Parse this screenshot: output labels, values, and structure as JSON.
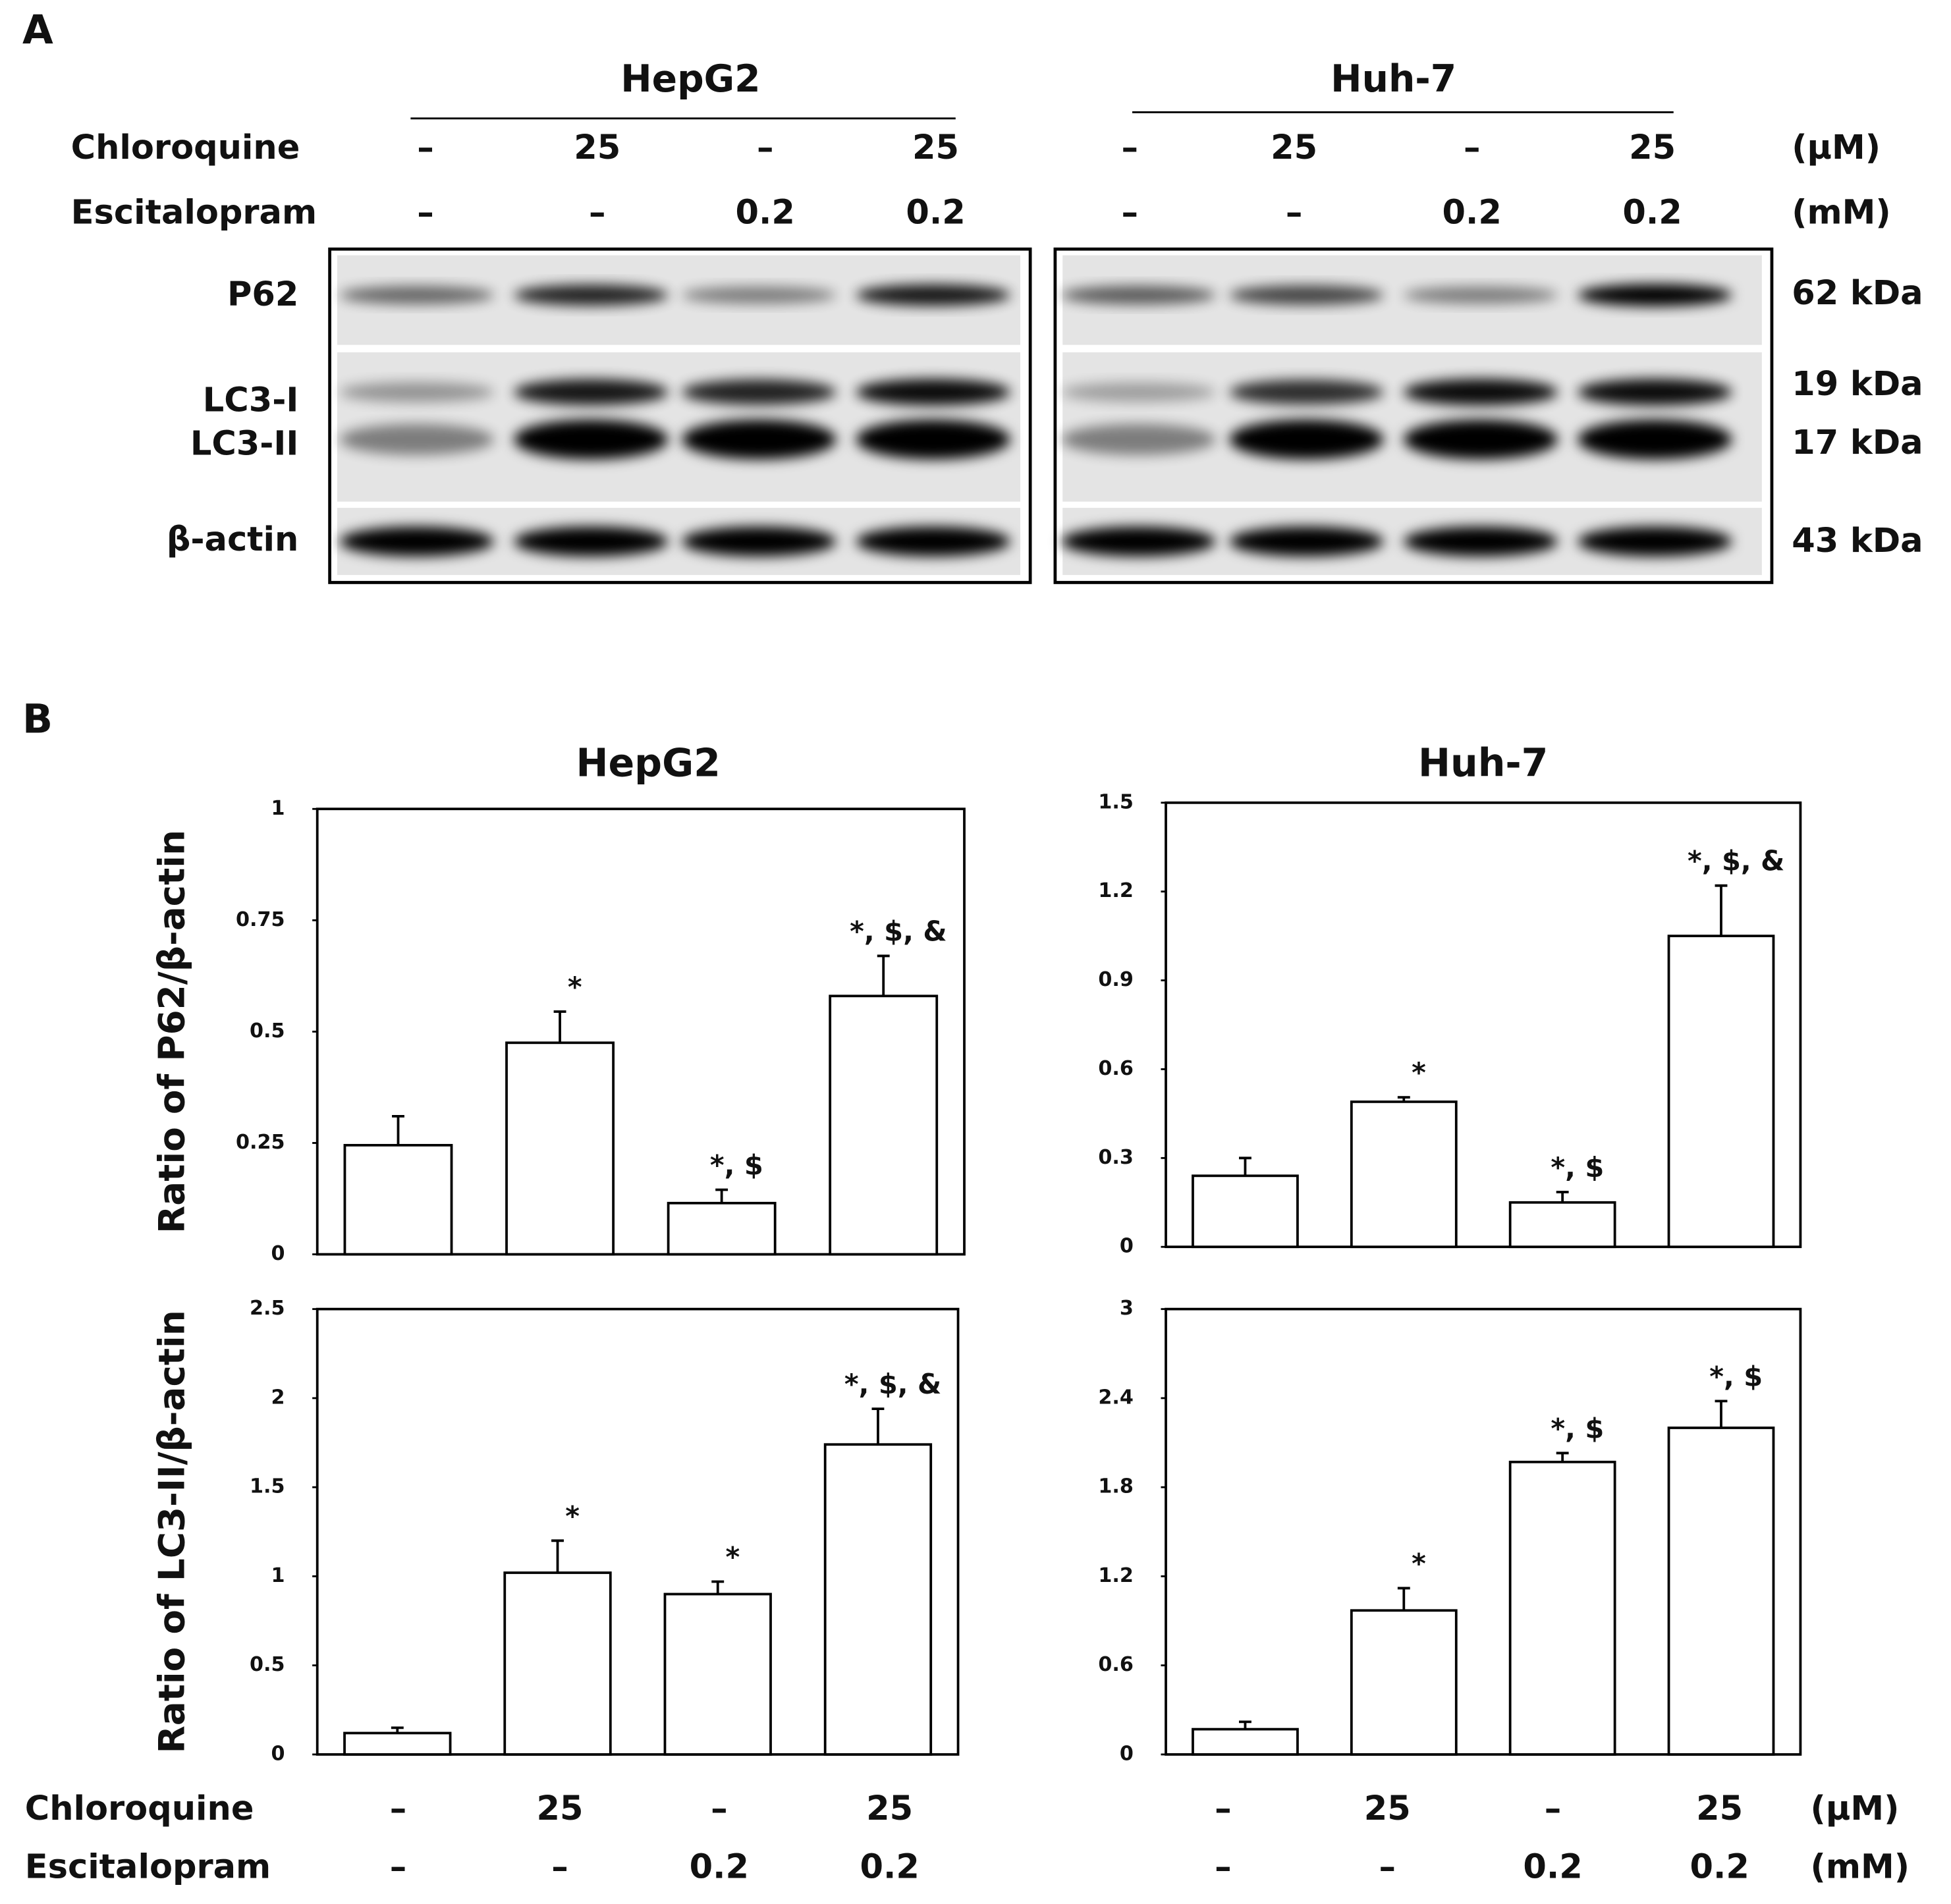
{
  "panel_a": {
    "label": "A",
    "groups": [
      "HepG2",
      "Huh-7"
    ],
    "treatments": [
      {
        "name": "Chloroquine",
        "unit": "(µM)",
        "lanes": [
          [
            "–",
            "25",
            "–",
            "25"
          ],
          [
            "–",
            "25",
            "–",
            "25"
          ]
        ]
      },
      {
        "name": "Escitalopram",
        "unit": "(mM)",
        "lanes": [
          [
            "–",
            "–",
            "0.2",
            "0.2"
          ],
          [
            "–",
            "–",
            "0.2",
            "0.2"
          ]
        ]
      }
    ],
    "bands": [
      {
        "name": "P62",
        "size": "62 kDa"
      },
      {
        "name": "LC3-I",
        "size": "19 kDa"
      },
      {
        "name": "LC3-II",
        "size": "17 kDa"
      },
      {
        "name": "β-actin",
        "size": "43 kDa"
      }
    ]
  },
  "panel_b": {
    "label": "B",
    "treatments": [
      {
        "name": "Chloroquine",
        "unit": "(µM)",
        "lanes": [
          [
            "–",
            "25",
            "–",
            "25"
          ],
          [
            "–",
            "25",
            "–",
            "25"
          ]
        ]
      },
      {
        "name": "Escitalopram",
        "unit": "(mM)",
        "lanes": [
          [
            "–",
            "–",
            "0.2",
            "0.2"
          ],
          [
            "–",
            "–",
            "0.2",
            "0.2"
          ]
        ]
      }
    ]
  },
  "chart_data": [
    {
      "type": "bar",
      "title": "HepG2",
      "ylabel": "Ratio of P62/β-actin",
      "color": "#ffffff",
      "edgecolor": "#000000",
      "values": [
        0.245,
        0.475,
        0.115,
        0.58
      ],
      "errors": [
        0.065,
        0.07,
        0.03,
        0.09
      ],
      "annotations": [
        null,
        "*",
        "*, $",
        "*, $, &"
      ],
      "ylim": [
        0,
        1
      ],
      "yticks": [
        0,
        0.25,
        0.5,
        0.75,
        1
      ]
    },
    {
      "type": "bar",
      "title": "Huh-7",
      "color": "#ffffff",
      "edgecolor": "#000000",
      "values": [
        0.24,
        0.49,
        0.15,
        1.05
      ],
      "errors": [
        0.06,
        0.015,
        0.035,
        0.17
      ],
      "annotations": [
        null,
        "*",
        "*, $",
        "*, $, &"
      ],
      "ylim": [
        0,
        1.5
      ],
      "yticks": [
        0,
        0.3,
        0.6,
        0.9,
        1.2,
        1.5
      ]
    },
    {
      "type": "bar",
      "ylabel": "Ratio of LC3-II/β-actin",
      "color": "#ffffff",
      "edgecolor": "#000000",
      "values": [
        0.12,
        1.02,
        0.9,
        1.74
      ],
      "errors": [
        0.03,
        0.18,
        0.07,
        0.2
      ],
      "annotations": [
        null,
        "*",
        "*",
        "*, $, &"
      ],
      "ylim": [
        0,
        2.5
      ],
      "yticks": [
        0,
        0.5,
        1,
        1.5,
        2,
        2.5
      ]
    },
    {
      "type": "bar",
      "color": "#ffffff",
      "edgecolor": "#000000",
      "values": [
        0.17,
        0.97,
        1.97,
        2.2
      ],
      "errors": [
        0.05,
        0.15,
        0.06,
        0.18
      ],
      "annotations": [
        null,
        "*",
        "*, $",
        "*, $"
      ],
      "ylim": [
        0,
        3
      ],
      "yticks": [
        0,
        0.6,
        1.2,
        1.8,
        2.4,
        3
      ]
    }
  ]
}
